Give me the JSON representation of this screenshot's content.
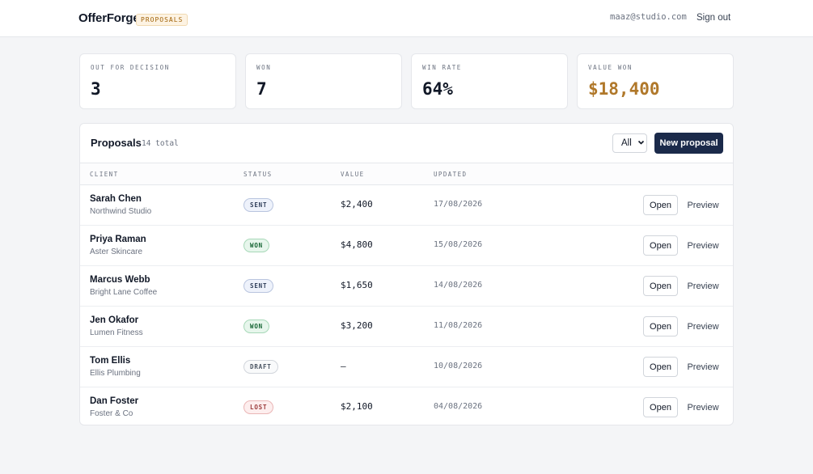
{
  "header": {
    "brand": "OfferForge",
    "brand_tag": "PROPOSALS",
    "user_email": "maaz@studio.com",
    "signout_label": "Sign out"
  },
  "stats": [
    {
      "label": "OUT FOR DECISION",
      "value": "3"
    },
    {
      "label": "WON",
      "value": "7"
    },
    {
      "label": "WIN RATE",
      "value": "64%"
    },
    {
      "label": "VALUE WON",
      "value": "$18,400",
      "color": "#b0782a"
    }
  ],
  "panel": {
    "title": "Proposals",
    "count": "14 total",
    "filter_value": "All",
    "new_label": "New proposal"
  },
  "table": {
    "columns": [
      "CLIENT",
      "STATUS",
      "VALUE",
      "UPDATED"
    ],
    "rows": [
      {
        "name": "Sarah Chen",
        "company": "Northwind Studio",
        "status": "SENT",
        "status_kind": "sent",
        "value": "$2,400",
        "updated": "17/08/2026"
      },
      {
        "name": "Priya Raman",
        "company": "Aster Skincare",
        "status": "WON",
        "status_kind": "won",
        "value": "$4,800",
        "updated": "15/08/2026"
      },
      {
        "name": "Marcus Webb",
        "company": "Bright Lane Coffee",
        "status": "SENT",
        "status_kind": "sent",
        "value": "$1,650",
        "updated": "14/08/2026"
      },
      {
        "name": "Jen Okafor",
        "company": "Lumen Fitness",
        "status": "WON",
        "status_kind": "won",
        "value": "$3,200",
        "updated": "11/08/2026"
      },
      {
        "name": "Tom Ellis",
        "company": "Ellis Plumbing",
        "status": "DRAFT",
        "status_kind": "draft",
        "value": "—",
        "updated": "10/08/2026"
      },
      {
        "name": "Dan Foster",
        "company": "Foster & Co",
        "status": "LOST",
        "status_kind": "lost",
        "value": "$2,100",
        "updated": "04/08/2026"
      }
    ],
    "open_label": "Open",
    "preview_label": "Preview"
  },
  "colors": {
    "accent": "#1b2a4a",
    "value_won": "#b0782a"
  }
}
